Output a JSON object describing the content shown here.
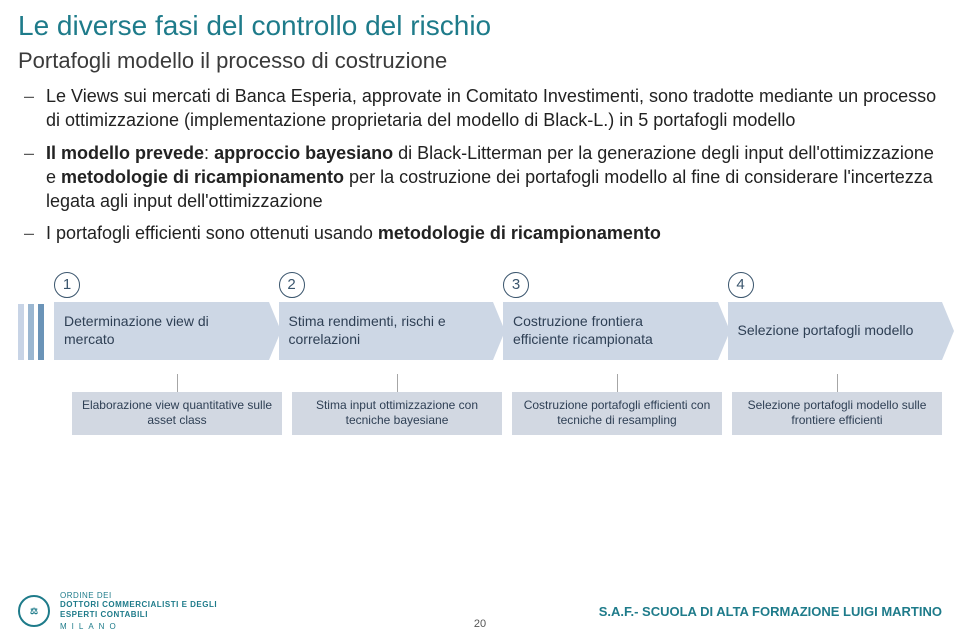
{
  "title": "Le diverse fasi del controllo del rischio",
  "subtitle": "Portafogli modello il processo di costruzione",
  "bullets": [
    {
      "prefix": "Le Views sui mercati di Banca Esperia, approvate in Comitato Investimenti, sono tradotte mediante un processo di ottimizzazione (implementazione proprietaria del modello di Black-L.) in 5 portafogli modello"
    },
    {
      "segments": [
        {
          "t": "Il modello prevede",
          "b": true
        },
        {
          "t": ": ",
          "b": false
        },
        {
          "t": "approccio bayesiano",
          "b": true
        },
        {
          "t": " di Black-Litterman per la generazione degli input dell'ottimizzazione e ",
          "b": false
        },
        {
          "t": "metodologie di ricampionamento",
          "b": true
        },
        {
          "t": " per la costruzione dei portafogli modello al fine di considerare l'incertezza legata agli input dell'ottimizzazione",
          "b": false
        }
      ]
    },
    {
      "segments": [
        {
          "t": "I portafogli efficienti sono ottenuti usando ",
          "b": false
        },
        {
          "t": "metodologie di ricampionamento",
          "b": true
        }
      ]
    }
  ],
  "steps": [
    {
      "num": "1",
      "label": "Determinazione view di mercato",
      "sub": "Elaborazione view quantitative sulle asset class"
    },
    {
      "num": "2",
      "label": "Stima rendimenti, rischi e correlazioni",
      "sub": "Stima input ottimizzazione con tecniche bayesiane"
    },
    {
      "num": "3",
      "label": "Costruzione frontiera efficiente ricampionata",
      "sub": "Costruzione portafogli efficienti con tecniche di resampling"
    },
    {
      "num": "4",
      "label": "Selezione portafogli modello",
      "sub": "Selezione portafogli modello sulle frontiere efficienti"
    }
  ],
  "footer": {
    "left_lines": [
      "ORDINE DEI",
      "DOTTORI COMMERCIALISTI E DEGLI",
      "ESPERTI CONTABILI"
    ],
    "left_city": "MILANO",
    "right": "S.A.F.- SCUOLA DI ALTA FORMAZIONE LUIGI MARTINO",
    "page": "20"
  },
  "colors": {
    "title": "#1e7b8a",
    "step_bg": "#cdd7e5",
    "sub_bg": "#d2d8e2"
  }
}
